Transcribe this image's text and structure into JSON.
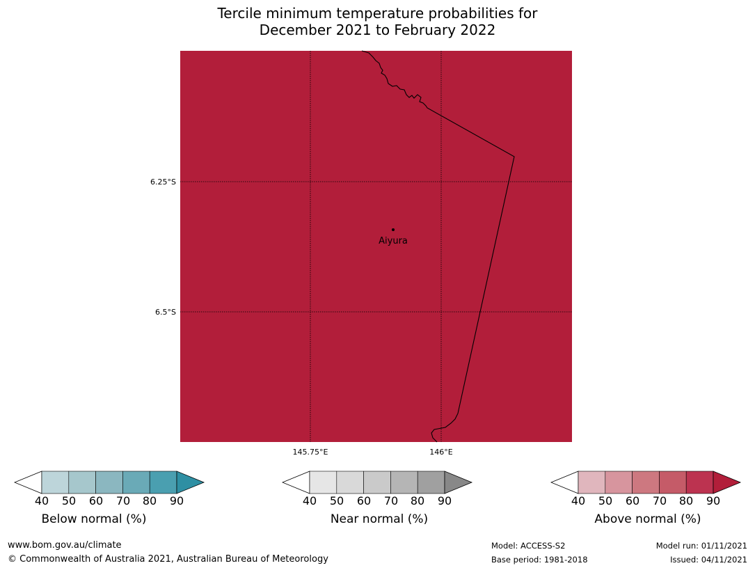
{
  "title": {
    "line1": "Tercile minimum temperature probabilities for",
    "line2": "December 2021 to February 2022"
  },
  "map": {
    "fill_color": "#b21e3a",
    "lat_labels": [
      "6.25°S",
      "6.5°S"
    ],
    "lon_labels": [
      "145.75°E",
      "146°E"
    ],
    "place": "Aiyura"
  },
  "colorbars": {
    "ticks": [
      "40",
      "50",
      "60",
      "70",
      "80",
      "90"
    ],
    "below": {
      "label": "Below normal (%)",
      "colors": [
        "#ffffff",
        "#bdd5da",
        "#a6c7cc",
        "#8bb7c0",
        "#6aaab7",
        "#4a9fb0",
        "#2e8fa3"
      ]
    },
    "near": {
      "label": "Near normal (%)",
      "colors": [
        "#ffffff",
        "#e6e6e6",
        "#d9d9d9",
        "#cacaca",
        "#b5b5b5",
        "#a0a0a0",
        "#888888"
      ]
    },
    "above": {
      "label": "Above normal (%)",
      "colors": [
        "#ffffff",
        "#e0b6bd",
        "#d7959e",
        "#cd7880",
        "#c55b68",
        "#bc3350",
        "#b21e3a"
      ]
    }
  },
  "footer": {
    "url": "www.bom.gov.au/climate",
    "copyright": "© Commonwealth of Australia 2021, Australian Bureau of Meteorology",
    "model": "Model: ACCESS-S2",
    "base_period": "Base period: 1981-2018",
    "model_run": "Model run: 01/11/2021",
    "issued": "Issued: 04/11/2021"
  }
}
